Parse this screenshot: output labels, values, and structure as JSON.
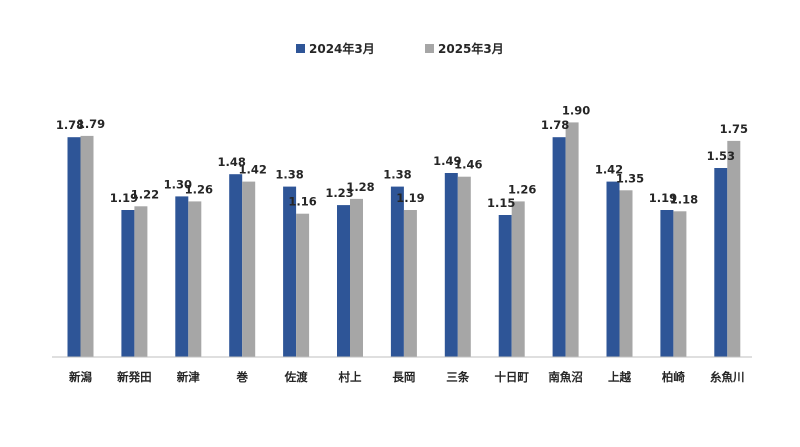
{
  "chart_data": {
    "type": "bar",
    "categories": [
      "新潟",
      "新発田",
      "新津",
      "巻",
      "佐渡",
      "村上",
      "長岡",
      "三条",
      "十日町",
      "南魚沼",
      "上越",
      "柏崎",
      "糸魚川"
    ],
    "series": [
      {
        "name": "2024年3月",
        "color": "#2E5597",
        "values": [
          1.78,
          1.19,
          1.3,
          1.48,
          1.38,
          1.23,
          1.38,
          1.49,
          1.15,
          1.78,
          1.42,
          1.19,
          1.53
        ],
        "labels": [
          "1.78",
          "1.19",
          "1.30",
          "1.48",
          "1.38",
          "1.23",
          "1.38",
          "1.49",
          "1.15",
          "1.78",
          "1.42",
          "1.19",
          "1.53"
        ]
      },
      {
        "name": "2025年3月",
        "color": "#A6A6A6",
        "values": [
          1.79,
          1.22,
          1.26,
          1.42,
          1.16,
          1.28,
          1.19,
          1.46,
          1.26,
          1.9,
          1.35,
          1.18,
          1.75
        ],
        "labels": [
          "1.79",
          "1.22",
          "1.26",
          "1.42",
          "1.16",
          "1.28",
          "1.19",
          "1.46",
          "1.26",
          "1.90",
          "1.35",
          "1.18",
          "1.75"
        ]
      }
    ],
    "ylim": [
      0,
      2.0
    ],
    "grid": false,
    "legend_position": "top-center"
  }
}
